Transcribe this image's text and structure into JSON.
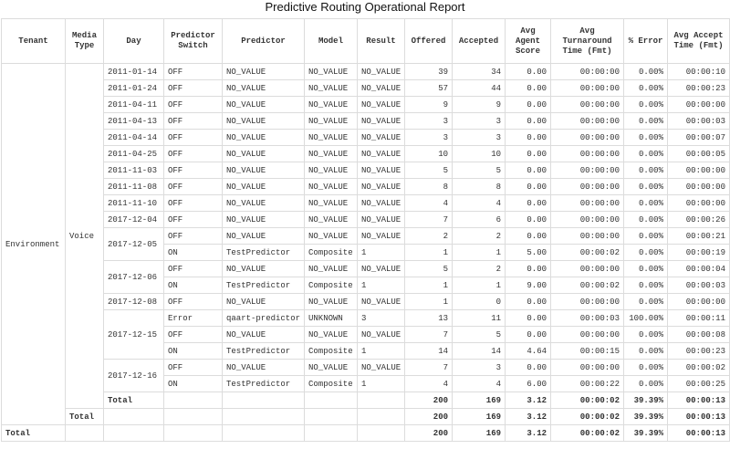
{
  "title": "Predictive Routing Operational Report",
  "table": {
    "headers": [
      "Tenant",
      "Media Type",
      "Day",
      "Predictor Switch",
      "Predictor",
      "Model",
      "Result",
      "Offered",
      "Accepted",
      "Avg Agent Score",
      "Avg Turnaround Time (Fmt)",
      "% Error",
      "Avg Accept Time (Fmt)"
    ],
    "tenant": "Environment",
    "media_type": "Voice",
    "days": [
      {
        "day": "2011-01-14",
        "rows": [
          [
            "OFF",
            "NO_VALUE",
            "NO_VALUE",
            "NO_VALUE",
            "39",
            "34",
            "0.00",
            "00:00:00",
            "0.00%",
            "00:00:10"
          ]
        ]
      },
      {
        "day": "2011-01-24",
        "rows": [
          [
            "OFF",
            "NO_VALUE",
            "NO_VALUE",
            "NO_VALUE",
            "57",
            "44",
            "0.00",
            "00:00:00",
            "0.00%",
            "00:00:23"
          ]
        ]
      },
      {
        "day": "2011-04-11",
        "rows": [
          [
            "OFF",
            "NO_VALUE",
            "NO_VALUE",
            "NO_VALUE",
            "9",
            "9",
            "0.00",
            "00:00:00",
            "0.00%",
            "00:00:00"
          ]
        ]
      },
      {
        "day": "2011-04-13",
        "rows": [
          [
            "OFF",
            "NO_VALUE",
            "NO_VALUE",
            "NO_VALUE",
            "3",
            "3",
            "0.00",
            "00:00:00",
            "0.00%",
            "00:00:03"
          ]
        ]
      },
      {
        "day": "2011-04-14",
        "rows": [
          [
            "OFF",
            "NO_VALUE",
            "NO_VALUE",
            "NO_VALUE",
            "3",
            "3",
            "0.00",
            "00:00:00",
            "0.00%",
            "00:00:07"
          ]
        ]
      },
      {
        "day": "2011-04-25",
        "rows": [
          [
            "OFF",
            "NO_VALUE",
            "NO_VALUE",
            "NO_VALUE",
            "10",
            "10",
            "0.00",
            "00:00:00",
            "0.00%",
            "00:00:05"
          ]
        ]
      },
      {
        "day": "2011-11-03",
        "rows": [
          [
            "OFF",
            "NO_VALUE",
            "NO_VALUE",
            "NO_VALUE",
            "5",
            "5",
            "0.00",
            "00:00:00",
            "0.00%",
            "00:00:00"
          ]
        ]
      },
      {
        "day": "2011-11-08",
        "rows": [
          [
            "OFF",
            "NO_VALUE",
            "NO_VALUE",
            "NO_VALUE",
            "8",
            "8",
            "0.00",
            "00:00:00",
            "0.00%",
            "00:00:00"
          ]
        ]
      },
      {
        "day": "2011-11-10",
        "rows": [
          [
            "OFF",
            "NO_VALUE",
            "NO_VALUE",
            "NO_VALUE",
            "4",
            "4",
            "0.00",
            "00:00:00",
            "0.00%",
            "00:00:00"
          ]
        ]
      },
      {
        "day": "2017-12-04",
        "rows": [
          [
            "OFF",
            "NO_VALUE",
            "NO_VALUE",
            "NO_VALUE",
            "7",
            "6",
            "0.00",
            "00:00:00",
            "0.00%",
            "00:00:26"
          ]
        ]
      },
      {
        "day": "2017-12-05",
        "rows": [
          [
            "OFF",
            "NO_VALUE",
            "NO_VALUE",
            "NO_VALUE",
            "2",
            "2",
            "0.00",
            "00:00:00",
            "0.00%",
            "00:00:21"
          ],
          [
            "ON",
            "TestPredictor",
            "Composite",
            "1",
            "1",
            "1",
            "5.00",
            "00:00:02",
            "0.00%",
            "00:00:19"
          ]
        ]
      },
      {
        "day": "2017-12-06",
        "rows": [
          [
            "OFF",
            "NO_VALUE",
            "NO_VALUE",
            "NO_VALUE",
            "5",
            "2",
            "0.00",
            "00:00:00",
            "0.00%",
            "00:00:04"
          ],
          [
            "ON",
            "TestPredictor",
            "Composite",
            "1",
            "1",
            "1",
            "9.00",
            "00:00:02",
            "0.00%",
            "00:00:03"
          ]
        ]
      },
      {
        "day": "2017-12-08",
        "rows": [
          [
            "OFF",
            "NO_VALUE",
            "NO_VALUE",
            "NO_VALUE",
            "1",
            "0",
            "0.00",
            "00:00:00",
            "0.00%",
            "00:00:00"
          ]
        ]
      },
      {
        "day": "2017-12-15",
        "rows": [
          [
            "Error",
            "qaart-predictor",
            "UNKNOWN",
            "3",
            "13",
            "11",
            "0.00",
            "00:00:03",
            "100.00%",
            "00:00:11"
          ],
          [
            "OFF",
            "NO_VALUE",
            "NO_VALUE",
            "NO_VALUE",
            "7",
            "5",
            "0.00",
            "00:00:00",
            "0.00%",
            "00:00:08"
          ],
          [
            "ON",
            "TestPredictor",
            "Composite",
            "1",
            "14",
            "14",
            "4.64",
            "00:00:15",
            "0.00%",
            "00:00:23"
          ]
        ]
      },
      {
        "day": "2017-12-16",
        "rows": [
          [
            "OFF",
            "NO_VALUE",
            "NO_VALUE",
            "NO_VALUE",
            "7",
            "3",
            "0.00",
            "00:00:00",
            "0.00%",
            "00:00:02"
          ],
          [
            "ON",
            "TestPredictor",
            "Composite",
            "1",
            "4",
            "4",
            "6.00",
            "00:00:22",
            "0.00%",
            "00:00:25"
          ]
        ]
      }
    ],
    "day_total": [
      "Total",
      "200",
      "169",
      "3.12",
      "00:00:02",
      "39.39%",
      "00:00:13"
    ],
    "media_total": [
      "Total",
      "200",
      "169",
      "3.12",
      "00:00:02",
      "39.39%",
      "00:00:13"
    ],
    "grand_total": [
      "Total",
      "200",
      "169",
      "3.12",
      "00:00:02",
      "39.39%",
      "00:00:13"
    ]
  }
}
